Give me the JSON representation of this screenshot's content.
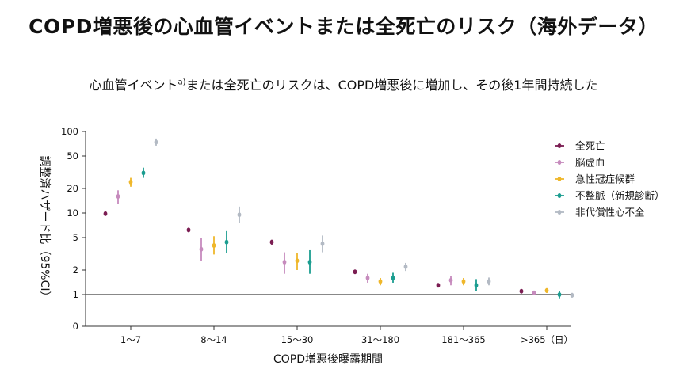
{
  "header": {
    "title": "COPD増悪後の心血管イベントまたは全死亡のリスク（海外データ）",
    "subtitle_part1": "心血管イベント",
    "subtitle_sup": "a)",
    "subtitle_part2": "または全死亡のリスクは、COPD増悪後に増加し、その後1年間持続した"
  },
  "chart_data": {
    "type": "scatter",
    "xlabel": "COPD増悪後曝露期間",
    "ylabel": "調整済ハザード比（95%CI）",
    "yscale": "log",
    "ylim": [
      0,
      100
    ],
    "yticks": [
      0,
      1,
      2,
      5,
      10,
      20,
      50,
      100
    ],
    "reference_line": 1,
    "grid": false,
    "legend_position": "right",
    "categories": [
      "1～7",
      "8～14",
      "15～30",
      "31～180",
      "181～365",
      ">365（日）"
    ],
    "series": [
      {
        "name": "全死亡",
        "color": "#7b1d52",
        "values": [
          9.8,
          6.2,
          4.4,
          1.9,
          1.3,
          1.1
        ],
        "ci_low": [
          9.4,
          5.9,
          4.1,
          1.85,
          1.25,
          1.07
        ],
        "ci_high": [
          10.3,
          6.5,
          4.7,
          1.95,
          1.35,
          1.13
        ]
      },
      {
        "name": "脳虚血",
        "color": "#c68bbd",
        "values": [
          16,
          3.6,
          2.5,
          1.6,
          1.5,
          1.05
        ],
        "ci_low": [
          13,
          2.6,
          1.8,
          1.4,
          1.3,
          0.98
        ],
        "ci_high": [
          19,
          4.9,
          3.3,
          1.8,
          1.7,
          1.12
        ]
      },
      {
        "name": "急性冠症候群",
        "color": "#efb72a",
        "values": [
          24,
          4.0,
          2.6,
          1.45,
          1.45,
          1.12
        ],
        "ci_low": [
          21,
          3.1,
          2.0,
          1.3,
          1.3,
          1.05
        ],
        "ci_high": [
          27,
          5.2,
          3.2,
          1.6,
          1.6,
          1.2
        ]
      },
      {
        "name": "不整脈（新規診断）",
        "color": "#1b9d90",
        "values": [
          31,
          4.4,
          2.5,
          1.6,
          1.3,
          1.0
        ],
        "ci_low": [
          27,
          3.2,
          1.8,
          1.4,
          1.1,
          0.9
        ],
        "ci_high": [
          36,
          6.0,
          3.5,
          1.85,
          1.55,
          1.1
        ]
      },
      {
        "name": "非代償性心不全",
        "color": "#b3bac4",
        "values": [
          74,
          9.5,
          4.2,
          2.2,
          1.45,
          0.98
        ],
        "ci_low": [
          67,
          7.6,
          3.3,
          1.95,
          1.3,
          0.92
        ],
        "ci_high": [
          82,
          12,
          5.3,
          2.45,
          1.62,
          1.05
        ]
      }
    ]
  }
}
